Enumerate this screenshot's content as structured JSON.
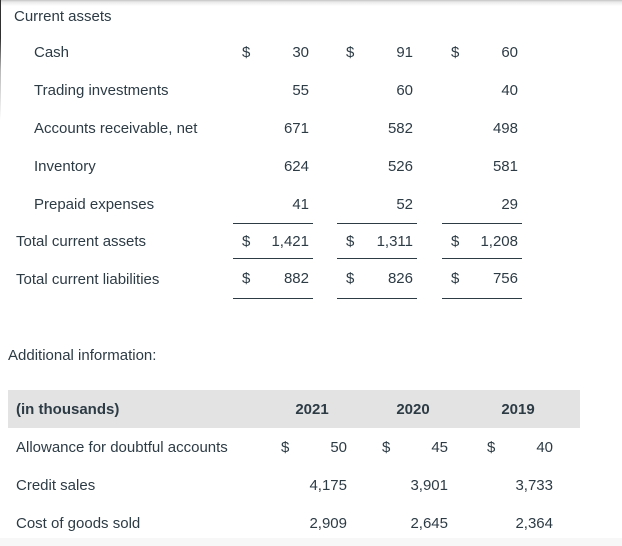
{
  "colors": {
    "text": "#2d3b45",
    "header_bg": "#e3e3e3",
    "rule": "#2d3b45",
    "page_bg": "#ffffff"
  },
  "currency_symbol": "$",
  "balance_section": {
    "header": "Current assets",
    "rows": [
      {
        "label": "Cash",
        "dollar": true,
        "values": [
          "30",
          "91",
          "60"
        ]
      },
      {
        "label": "Trading investments",
        "values": [
          "55",
          "60",
          "40"
        ]
      },
      {
        "label": "Accounts receivable, net",
        "values": [
          "671",
          "582",
          "498"
        ]
      },
      {
        "label": "Inventory",
        "values": [
          "624",
          "526",
          "581"
        ]
      },
      {
        "label": "Prepaid expenses",
        "values": [
          "41",
          "52",
          "29"
        ]
      }
    ],
    "totals": [
      {
        "label": "Total current assets",
        "dollar": true,
        "values": [
          "1,421",
          "1,311",
          "1,208"
        ]
      },
      {
        "label": "Total current liabilities",
        "dollar": true,
        "values": [
          "882",
          "826",
          "756"
        ]
      }
    ]
  },
  "additional_info": {
    "heading": "Additional information:",
    "table": {
      "header_label": "(in thousands)",
      "years": [
        "2021",
        "2020",
        "2019"
      ],
      "rows": [
        {
          "label": "Allowance for doubtful accounts",
          "dollar": true,
          "values": [
            "50",
            "45",
            "40"
          ]
        },
        {
          "label": "Credit sales",
          "values": [
            "4,175",
            "3,901",
            "3,733"
          ]
        },
        {
          "label": "Cost of goods sold",
          "values": [
            "2,909",
            "2,645",
            "2,364"
          ]
        }
      ]
    }
  }
}
